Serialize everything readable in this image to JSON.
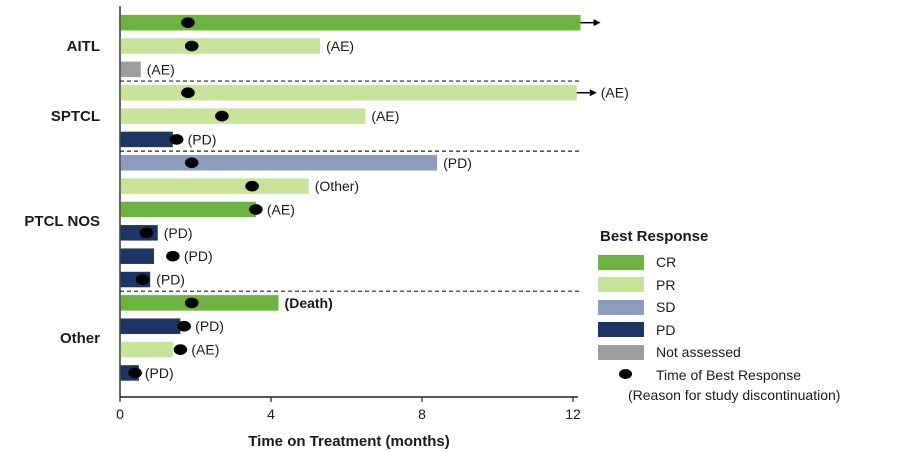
{
  "chart_data": {
    "type": "bar",
    "orientation": "horizontal",
    "xlabel": "Time on Treatment (months)",
    "xlim": [
      0,
      12.5
    ],
    "xticks": [
      0,
      4,
      8,
      12
    ],
    "groups": [
      {
        "name": "AITL",
        "rows": [
          {
            "duration": 12.2,
            "response": "CR",
            "best_response_time": 1.8,
            "reason": "",
            "ongoing": true
          },
          {
            "duration": 5.3,
            "response": "PR",
            "best_response_time": 1.9,
            "reason": "(AE)",
            "ongoing": false
          },
          {
            "duration": 0.55,
            "response": "Not assessed",
            "best_response_time": null,
            "reason": "(AE)",
            "ongoing": false
          }
        ]
      },
      {
        "name": "SPTCL",
        "rows": [
          {
            "duration": 12.1,
            "response": "PR",
            "best_response_time": 1.8,
            "reason": "(AE)",
            "ongoing": true
          },
          {
            "duration": 6.5,
            "response": "PR",
            "best_response_time": 2.7,
            "reason": "(AE)",
            "ongoing": false
          },
          {
            "duration": 1.4,
            "response": "PD",
            "best_response_time": 1.5,
            "reason": "(PD)",
            "ongoing": false
          }
        ]
      },
      {
        "name": "PTCL NOS",
        "rows": [
          {
            "duration": 8.4,
            "response": "SD",
            "best_response_time": 1.9,
            "reason": "(PD)",
            "ongoing": false
          },
          {
            "duration": 5.0,
            "response": "PR",
            "best_response_time": 3.5,
            "reason": "(Other)",
            "ongoing": false
          },
          {
            "duration": 3.6,
            "response": "CR",
            "best_response_time": 3.6,
            "reason": "(AE)",
            "ongoing": false
          },
          {
            "duration": 1.0,
            "response": "PD",
            "best_response_time": 0.7,
            "reason": "(PD)",
            "ongoing": false
          },
          {
            "duration": 0.9,
            "response": "PD",
            "best_response_time": 1.4,
            "reason": "(PD)",
            "ongoing": false
          },
          {
            "duration": 0.8,
            "response": "PD",
            "best_response_time": 0.6,
            "reason": "(PD)",
            "ongoing": false
          }
        ]
      },
      {
        "name": "Other",
        "rows": [
          {
            "duration": 4.2,
            "response": "CR",
            "best_response_time": 1.9,
            "reason": "(Death)",
            "ongoing": false,
            "bold_reason": true
          },
          {
            "duration": 1.6,
            "response": "PD",
            "best_response_time": 1.7,
            "reason": "(PD)",
            "ongoing": false
          },
          {
            "duration": 1.4,
            "response": "PR",
            "best_response_time": 1.6,
            "reason": "(AE)",
            "ongoing": false
          },
          {
            "duration": 0.5,
            "response": "PD",
            "best_response_time": 0.4,
            "reason": "(PD)",
            "ongoing": false
          }
        ]
      }
    ],
    "colors": {
      "CR": "#6db33f",
      "PR": "#c7e39a",
      "SD": "#8d9cbd",
      "PD": "#1c3565",
      "Not assessed": "#9d9d9d"
    }
  },
  "legend": {
    "title": "Best Response",
    "items": [
      {
        "label": "CR",
        "color": "#6db33f"
      },
      {
        "label": "PR",
        "color": "#c7e39a"
      },
      {
        "label": "SD",
        "color": "#8d9cbd"
      },
      {
        "label": "PD",
        "color": "#1c3565"
      },
      {
        "label": "Not assessed",
        "color": "#9d9d9d"
      }
    ],
    "marker_label": "Time of Best Response",
    "note": "(Reason for study discontinuation)"
  }
}
